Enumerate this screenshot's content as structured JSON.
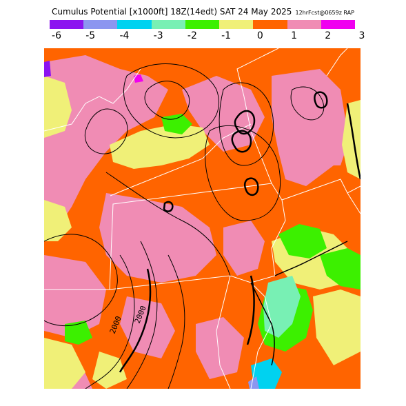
{
  "title": {
    "main": "Cumulus Potential [x1000ft] 18Z(14edt) SAT 24 May 2025",
    "forecast": "12hrFcst@0659z RAP"
  },
  "legend": {
    "colors": [
      "#8c14f0",
      "#8c96f0",
      "#00d2f0",
      "#78f0b4",
      "#3cf000",
      "#f0f078",
      "#ff6400",
      "#f08cb4",
      "#f000f0"
    ],
    "ticks": [
      "-6",
      "-5",
      "-4",
      "-3",
      "-2",
      "-1",
      "0",
      "1",
      "2",
      "3"
    ]
  },
  "map": {
    "contour_labels": [
      "2000",
      "2000"
    ]
  }
}
